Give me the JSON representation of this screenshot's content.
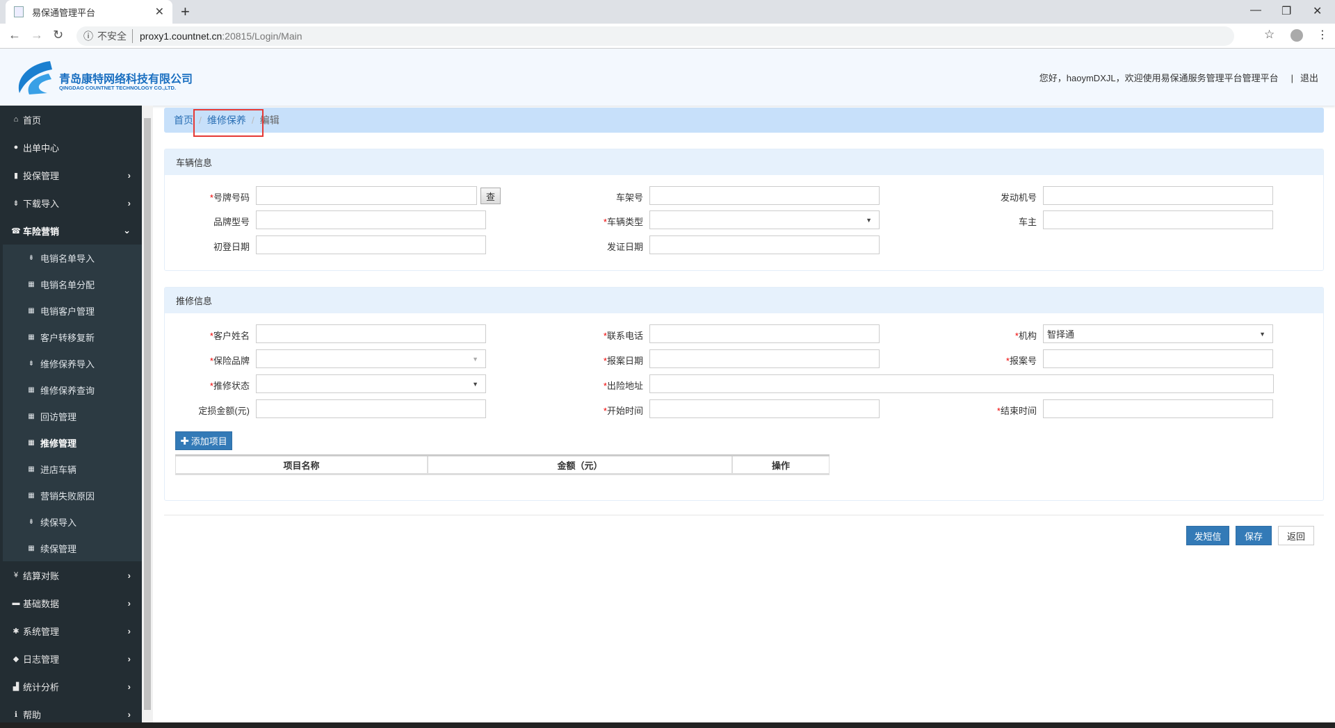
{
  "browser": {
    "tab_title": "易保通管理平台",
    "security": "不安全",
    "url_host": "proxy1.countnet.cn",
    "url_path": ":20815/Login/Main"
  },
  "header": {
    "company": "青岛康特网络科技有限公司",
    "company_en": "QINGDAO COUNTNET TECHNOLOGY CO.,LTD.",
    "welcome": "您好，haoymDXJL，欢迎使用易保通服务管理平台管理平台",
    "logout": "退出"
  },
  "sidebar": {
    "top": [
      {
        "label": "首页",
        "icon": "home-icon",
        "glyph": "⌂"
      },
      {
        "label": "出单中心",
        "icon": "globe-icon",
        "glyph": "●"
      },
      {
        "label": "投保管理",
        "icon": "file-icon",
        "glyph": "▮",
        "chev": "›"
      },
      {
        "label": "下载导入",
        "icon": "import-icon",
        "glyph": "⇟",
        "chev": "›"
      },
      {
        "label": "车险营销",
        "icon": "phone-icon",
        "glyph": "☎",
        "chev": "⌄"
      }
    ],
    "sub": [
      {
        "label": "电销名单导入",
        "glyph": "⇟"
      },
      {
        "label": "电销名单分配",
        "glyph": "▦"
      },
      {
        "label": "电销客户管理",
        "glyph": "▦"
      },
      {
        "label": "客户转移复新",
        "glyph": "▦"
      },
      {
        "label": "维修保养导入",
        "glyph": "⇟"
      },
      {
        "label": "维修保养查询",
        "glyph": "▦"
      },
      {
        "label": "回访管理",
        "glyph": "▦"
      },
      {
        "label": "推修管理",
        "glyph": "▦"
      },
      {
        "label": "进店车辆",
        "glyph": "▦"
      },
      {
        "label": "营销失败原因",
        "glyph": "▦"
      },
      {
        "label": "续保导入",
        "glyph": "⇟"
      },
      {
        "label": "续保管理",
        "glyph": "▦"
      }
    ],
    "bottom": [
      {
        "label": "结算对账",
        "icon": "yen-icon",
        "glyph": "¥",
        "chev": "›"
      },
      {
        "label": "基础数据",
        "icon": "hdd-icon",
        "glyph": "▬",
        "chev": "›"
      },
      {
        "label": "系统管理",
        "icon": "gear-icon",
        "glyph": "✱",
        "chev": "›"
      },
      {
        "label": "日志管理",
        "icon": "tags-icon",
        "glyph": "◆",
        "chev": "›"
      },
      {
        "label": "统计分析",
        "icon": "bar-chart-icon",
        "glyph": "▟",
        "chev": "›"
      },
      {
        "label": "帮助",
        "icon": "info-icon",
        "glyph": "ℹ",
        "chev": "›"
      }
    ]
  },
  "breadcrumb": {
    "home": "首页",
    "section": "维修保养",
    "current": "编辑",
    "sep": "/"
  },
  "vehicle": {
    "title": "车辆信息",
    "plate": "号牌号码",
    "check": "查",
    "vin": "车架号",
    "engine": "发动机号",
    "brand_model": "品牌型号",
    "vehicle_type": "车辆类型",
    "owner": "车主",
    "reg_date": "初登日期",
    "issue_date": "发证日期"
  },
  "repair": {
    "title": "推修信息",
    "customer": "客户姓名",
    "phone": "联系电话",
    "org": "机构",
    "org_value": "智择通",
    "ins_brand": "保险品牌",
    "report_date": "报案日期",
    "report_no": "报案号",
    "status": "推修状态",
    "address": "出险地址",
    "amount": "定损金额(元)",
    "start": "开始时间",
    "end": "结束时间",
    "add_item": "添加项目"
  },
  "table": {
    "columns": [
      "项目名称",
      "金额（元）",
      "操作"
    ]
  },
  "actions": {
    "sms": "发短信",
    "save": "保存",
    "back": "返回"
  },
  "colors": {
    "primary": "#337ab7",
    "sidebar": "#232d33",
    "breadcrumb": "#c7e0fa",
    "highlight": "#e53935"
  }
}
